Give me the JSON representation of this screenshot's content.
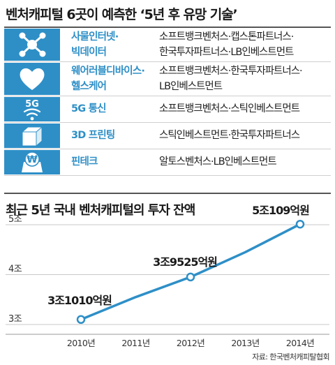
{
  "title": "벤처캐피털 6곳이 예측한 ‘5년 후 유망 기술’",
  "accent_color": "#2e8fc7",
  "tech_rows": [
    {
      "icon": "network-icon",
      "category_lines": [
        "사물인터넷·",
        "빅데이터"
      ],
      "firm_lines": [
        "소프트뱅크벤처스·캡스톤파트너스·",
        "한국투자파트너스·LB인베스트먼트"
      ]
    },
    {
      "icon": "heart-icon",
      "category_lines": [
        "웨어러블디바이스·",
        "헬스케어"
      ],
      "firm_lines": [
        "소프트뱅크벤처스·한국투자파트너스·",
        "LB인베스트먼트"
      ]
    },
    {
      "icon": "5g-signal-icon",
      "icon_text": "5G",
      "category_lines": [
        "5G 통신"
      ],
      "firm_lines": [
        "소프트뱅크벤처스·스틱인베스트먼트"
      ]
    },
    {
      "icon": "cube-icon",
      "category_lines": [
        "3D 프린팅"
      ],
      "firm_lines": [
        "스틱인베스트먼트·한국투자파트너스"
      ]
    },
    {
      "icon": "won-coin-icon",
      "icon_text": "₩",
      "category_lines": [
        "핀테크"
      ],
      "firm_lines": [
        "알토스벤처스·LB인베스트먼트"
      ]
    }
  ],
  "chart_data": {
    "type": "line",
    "title": "최근 5년 국내 벤처캐피털의 투자 잔액",
    "categories": [
      "2010년",
      "2011년",
      "2012년",
      "2013년",
      "2014년"
    ],
    "x": [
      2010,
      2011,
      2012,
      2013,
      2014
    ],
    "values": [
      3.101,
      3.55,
      3.9525,
      4.45,
      5.0109
    ],
    "marker_points": [
      {
        "x": 2010,
        "y": 3.101,
        "label": "3조1010억원"
      },
      {
        "x": 2012,
        "y": 3.9525,
        "label": "3조9525억원"
      },
      {
        "x": 2014,
        "y": 5.0109,
        "label": "5조109억원"
      }
    ],
    "ytick_values": [
      3,
      4,
      5
    ],
    "ytick_labels": [
      "3조",
      "4조",
      "5조"
    ],
    "ylim": [
      3,
      5
    ],
    "grid": true,
    "line_color": "#2e8fc7"
  },
  "source": "자료: 한국벤처캐피탈협회"
}
